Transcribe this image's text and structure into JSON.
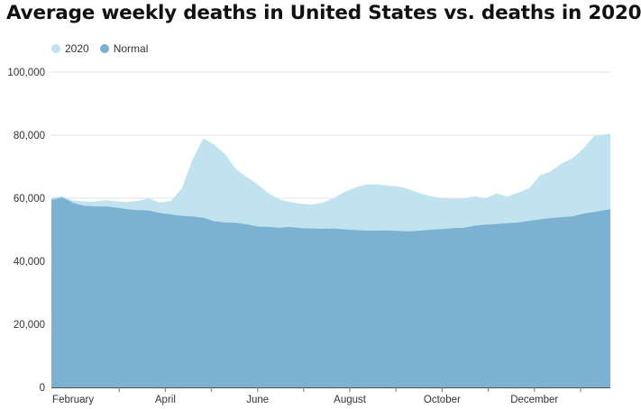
{
  "chart_data": {
    "type": "area",
    "title": "Average weekly deaths in United States vs. deaths in 2020",
    "legend": [
      {
        "name": "2020",
        "color": "#c1e3ef"
      },
      {
        "name": "Normal",
        "color": "#7db1d1"
      }
    ],
    "legend_position": "top-left",
    "ylim": [
      0,
      100000
    ],
    "yticks": [
      0,
      20000,
      40000,
      60000,
      80000,
      100000
    ],
    "ytick_labels": [
      "0",
      "20,000",
      "40,000",
      "60,000",
      "80,000",
      "100,000"
    ],
    "xlim": [
      1,
      52.5
    ],
    "xticks": [
      3,
      11.5,
      20,
      28.5,
      37,
      45.5
    ],
    "xtick_labels": [
      "February",
      "April",
      "June",
      "August",
      "October",
      "December"
    ],
    "grid": true,
    "weeks": [
      1,
      2,
      3,
      4,
      5,
      6,
      7,
      8,
      9,
      10,
      11,
      12,
      13,
      14,
      15,
      16,
      17,
      18,
      19,
      20,
      21,
      22,
      23,
      24,
      25,
      26,
      27,
      28,
      29,
      30,
      31,
      32,
      33,
      34,
      35,
      36,
      37,
      38,
      39,
      40,
      41,
      42,
      43,
      44,
      45,
      46,
      47,
      48,
      49,
      50,
      51,
      52
    ],
    "series": [
      {
        "name": "2020",
        "values": [
          60200,
          60600,
          59300,
          59000,
          58900,
          59400,
          59000,
          58800,
          59200,
          59900,
          58600,
          59100,
          63000,
          72200,
          79000,
          77000,
          74000,
          69200,
          66700,
          64400,
          61600,
          59600,
          58800,
          58200,
          58000,
          58600,
          60000,
          62000,
          63400,
          64400,
          64400,
          64000,
          63700,
          62800,
          61500,
          60600,
          60000,
          59800,
          59900,
          60600,
          60000,
          61500,
          60500,
          61800,
          63100,
          67200,
          68500,
          71000,
          72600,
          75700,
          79700,
          80200
        ]
      },
      {
        "name": "Normal",
        "values": [
          59500,
          60200,
          58500,
          57600,
          57400,
          57400,
          57000,
          56500,
          56200,
          56100,
          55300,
          54900,
          54400,
          54200,
          53800,
          52700,
          52300,
          52200,
          51700,
          51000,
          50900,
          50600,
          50900,
          50500,
          50400,
          50300,
          50400,
          50100,
          49900,
          49700,
          49700,
          49800,
          49600,
          49500,
          49700,
          50000,
          50200,
          50500,
          50600,
          51300,
          51600,
          51800,
          52100,
          52300,
          52800,
          53300,
          53700,
          54000,
          54200,
          55100,
          55600,
          56200
        ]
      }
    ]
  }
}
